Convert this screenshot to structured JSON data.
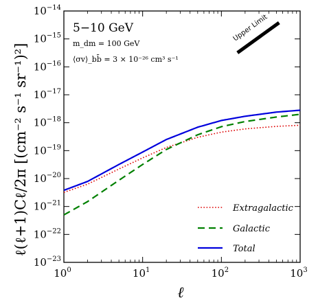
{
  "chart_data": {
    "type": "line",
    "x_scale": "log",
    "y_scale": "log",
    "xlim": [
      1,
      1000
    ],
    "ylim": [
      1e-23,
      1e-14
    ],
    "xlabel": "ℓ",
    "ylabel": "ℓ(ℓ+1)Cℓ/2π [(cm⁻² s⁻¹ sr⁻¹)²]",
    "x_ticks": [
      {
        "value": 1,
        "mantissa": "10",
        "exponent": "0"
      },
      {
        "value": 10,
        "mantissa": "10",
        "exponent": "1"
      },
      {
        "value": 100,
        "mantissa": "10",
        "exponent": "2"
      },
      {
        "value": 1000,
        "mantissa": "10",
        "exponent": "3"
      }
    ],
    "y_ticks": [
      {
        "value": 1e-14,
        "mantissa": "10",
        "exponent": "−14"
      },
      {
        "value": 1e-15,
        "mantissa": "10",
        "exponent": "−15"
      },
      {
        "value": 1e-16,
        "mantissa": "10",
        "exponent": "−16"
      },
      {
        "value": 1e-17,
        "mantissa": "10",
        "exponent": "−17"
      },
      {
        "value": 1e-18,
        "mantissa": "10",
        "exponent": "−18"
      },
      {
        "value": 1e-19,
        "mantissa": "10",
        "exponent": "−19"
      },
      {
        "value": 1e-20,
        "mantissa": "10",
        "exponent": "−20"
      },
      {
        "value": 1e-21,
        "mantissa": "10",
        "exponent": "−21"
      },
      {
        "value": 1e-22,
        "mantissa": "10",
        "exponent": "−22"
      },
      {
        "value": 1e-23,
        "mantissa": "10",
        "exponent": "−23"
      }
    ],
    "annotations": {
      "energy_band": "5−10 GeV",
      "mass": "m_dm = 100 GeV",
      "cross_section": "⟨σv⟩_bb̄ = 3 × 10⁻²⁶ cm³ s⁻¹",
      "upper_limit": "Upper Limit"
    },
    "upper_limit_line": {
      "x": [
        160,
        540
      ],
      "y": [
        3.2e-16,
        3.8e-15
      ]
    },
    "legend_position": "lower-right",
    "series": [
      {
        "name": "Extragalactic",
        "color": "#dd0000",
        "style": "dotted",
        "x": [
          1,
          2,
          5,
          10,
          20,
          50,
          100,
          200,
          500,
          1000
        ],
        "y": [
          3.2e-21,
          6.3e-21,
          2.2e-20,
          5.5e-20,
          1.3e-19,
          3e-19,
          4.6e-19,
          6e-19,
          7.4e-19,
          8.1e-19
        ]
      },
      {
        "name": "Galactic",
        "color": "#008000",
        "style": "dashed",
        "x": [
          1,
          2,
          5,
          10,
          20,
          50,
          100,
          200,
          500,
          1000
        ],
        "y": [
          5e-22,
          1.5e-21,
          8.7e-21,
          3.2e-20,
          1.1e-19,
          3.7e-19,
          7.2e-19,
          1.1e-18,
          1.6e-18,
          2e-18
        ]
      },
      {
        "name": "Total",
        "color": "#0000dd",
        "style": "solid",
        "x": [
          1,
          2,
          5,
          10,
          20,
          50,
          100,
          200,
          500,
          1000
        ],
        "y": [
          3.8e-21,
          7.9e-21,
          3.2e-20,
          8.9e-20,
          2.5e-19,
          6.9e-19,
          1.2e-18,
          1.7e-18,
          2.4e-18,
          2.8e-18
        ]
      }
    ]
  }
}
